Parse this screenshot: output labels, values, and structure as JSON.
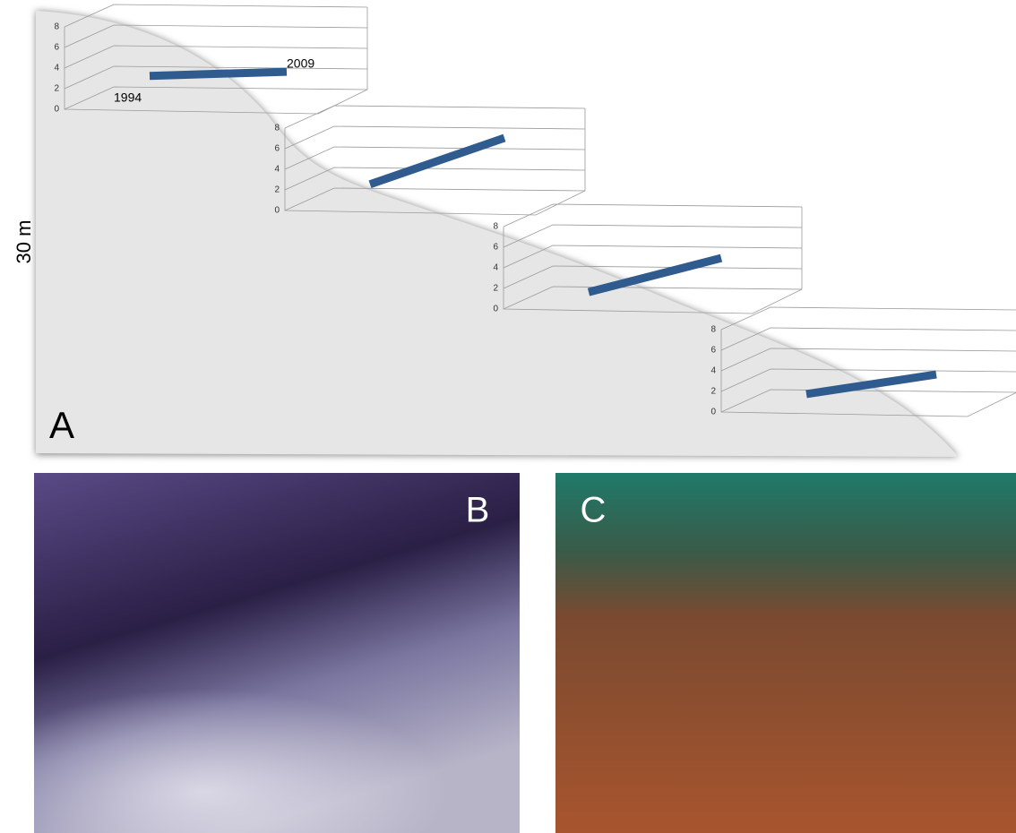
{
  "labels": {
    "depth": "30 m",
    "panels": [
      "A",
      "B",
      "C"
    ]
  },
  "chart_data": [
    {
      "type": "line",
      "categories": [
        "1994",
        "2009"
      ],
      "series": [
        {
          "color": "#2f5b8e",
          "values": [
            2.2,
            2.6
          ]
        }
      ],
      "ylim": [
        0,
        8
      ],
      "yticks": [
        0,
        2,
        4,
        6,
        8
      ],
      "grid": true
    },
    {
      "type": "line",
      "series": [
        {
          "color": "#2f5b8e",
          "values": [
            1.5,
            6
          ]
        }
      ],
      "ylim": [
        0,
        8
      ],
      "yticks": [
        0,
        2,
        4,
        6,
        8
      ],
      "grid": true
    },
    {
      "type": "line",
      "series": [
        {
          "color": "#2f5b8e",
          "values": [
            0.6,
            3.9
          ]
        }
      ],
      "ylim": [
        0,
        8
      ],
      "yticks": [
        0,
        2,
        4,
        6,
        8
      ],
      "grid": true
    },
    {
      "type": "line",
      "series": [
        {
          "color": "#2f5b8e",
          "values": [
            0.7,
            2.6
          ]
        }
      ],
      "ylim": [
        0,
        8
      ],
      "yticks": [
        0,
        2,
        4,
        6,
        8
      ],
      "grid": true
    }
  ]
}
